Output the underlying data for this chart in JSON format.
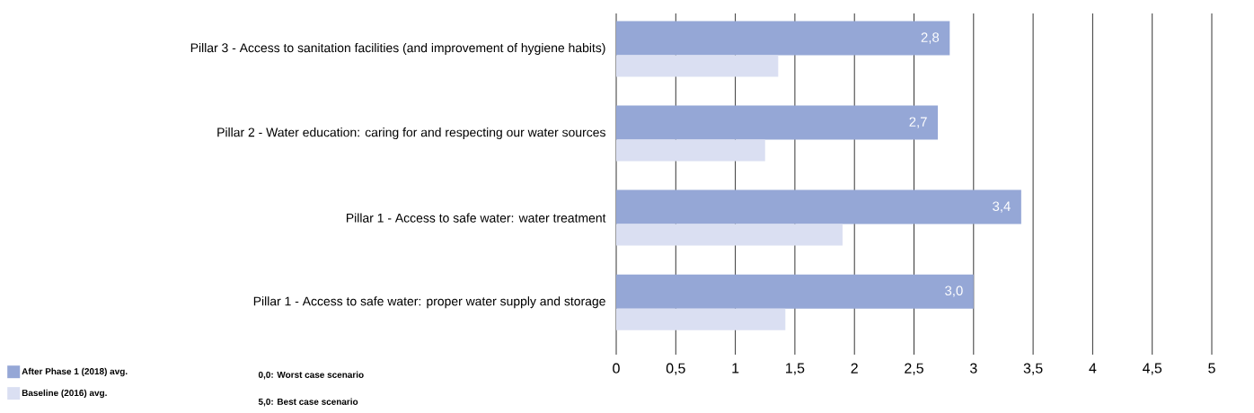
{
  "chart_data": {
    "type": "bar",
    "orientation": "horizontal",
    "categories": [
      "Pillar 3 - Access to sanitation facilities (and improvement of hygiene habits)",
      "Pillar 2 - Water education: caring for and respecting our water sources",
      "Pillar 1 - Access to safe water: water treatment",
      "Pillar 1 - Access to safe water: proper water supply and storage"
    ],
    "series": [
      {
        "name": "After Phase 1 (2018) avg.",
        "color": "#95a7d6",
        "values": [
          2.8,
          2.7,
          3.4,
          3.0
        ],
        "value_labels": [
          "2,8",
          "2,7",
          "3,4",
          "3,0"
        ]
      },
      {
        "name": "Baseline (2016) avg.",
        "color": "#dadff2",
        "values": [
          1.36,
          1.25,
          1.9,
          1.42
        ]
      }
    ],
    "xlim": [
      0,
      5
    ],
    "xticks": [
      0,
      {
        "value": 0.5,
        "label": "0,5"
      },
      1,
      {
        "value": 1.5,
        "label": "1,5"
      },
      2,
      {
        "value": 2.5,
        "label": "2,5"
      },
      3,
      {
        "value": 3.5,
        "label": "3,5"
      },
      4,
      {
        "value": 4.5,
        "label": "4,5"
      },
      5
    ],
    "grid": "x",
    "legend": "bottom left",
    "annotations": [
      "0,0: Worst case scenario",
      "5,0: Best case scenario"
    ]
  }
}
